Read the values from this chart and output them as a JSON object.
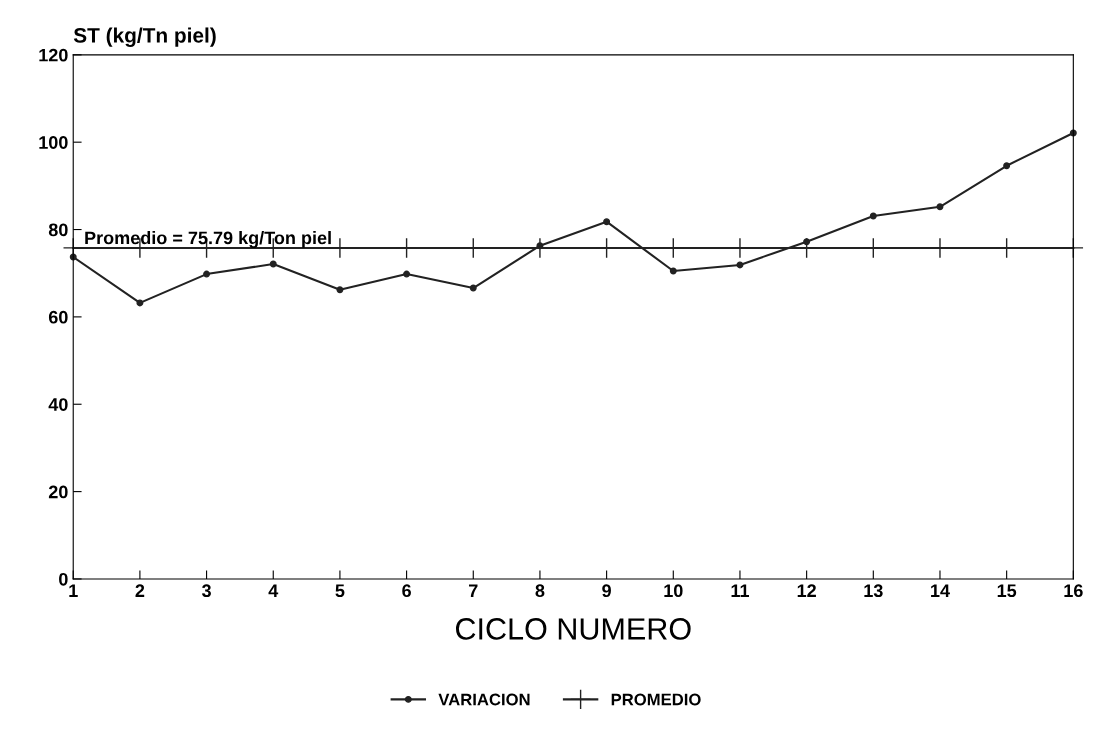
{
  "chart_data": {
    "type": "line",
    "ylabel": "ST (kg/Tn piel)",
    "xlabel": "CICLO NUMERO",
    "categories": [
      "1",
      "2",
      "3",
      "4",
      "5",
      "6",
      "7",
      "8",
      "9",
      "10",
      "11",
      "12",
      "13",
      "14",
      "15",
      "16"
    ],
    "series": [
      {
        "name": "VARIACION",
        "color": "#222222",
        "marker": "circle",
        "values": [
          73.7,
          63.2,
          69.8,
          72.1,
          66.2,
          69.8,
          66.6,
          76.3,
          81.8,
          70.5,
          71.9,
          77.2,
          83.1,
          85.2,
          94.6,
          102.1
        ]
      },
      {
        "name": "PROMEDIO",
        "color": "#222222",
        "marker": "cross",
        "values": [
          75.79,
          75.79,
          75.79,
          75.79,
          75.79,
          75.79,
          75.79,
          75.79,
          75.79,
          75.79,
          75.79,
          75.79,
          75.79,
          75.79,
          75.79,
          75.79
        ]
      }
    ],
    "annotations": [
      {
        "text": "Promedio = 75.79 kg/Ton piel",
        "x": "1",
        "y": 75.79
      }
    ],
    "ylim": [
      0,
      120
    ],
    "yticks": [
      0,
      20,
      40,
      60,
      80,
      100,
      120
    ],
    "grid": false,
    "legend": "bottom",
    "line_style": "solid"
  }
}
